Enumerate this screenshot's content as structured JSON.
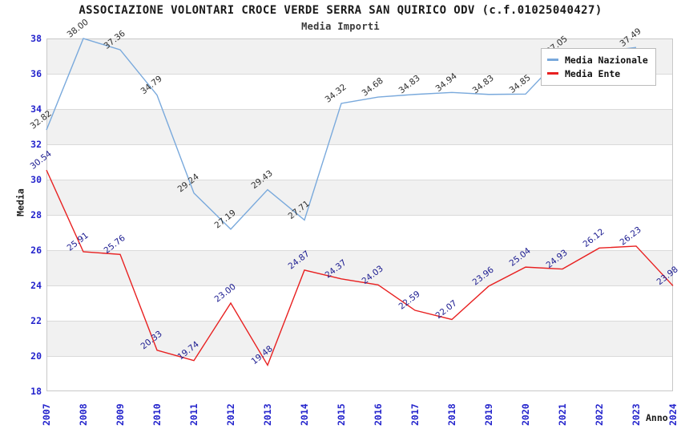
{
  "chart_data": {
    "type": "line",
    "title": "ASSOCIAZIONE VOLONTARI CROCE VERDE SERRA SAN QUIRICO ODV (c.f.01025040427)",
    "subtitle": "Media Importi",
    "xlabel": "Anno",
    "ylabel": "Media",
    "ylim": [
      18,
      38
    ],
    "y_ticks": [
      18,
      20,
      22,
      24,
      26,
      28,
      30,
      32,
      34,
      36,
      38
    ],
    "grid": "horizontal-bands",
    "legend_position": "top-right",
    "categories": [
      "2007",
      "2008",
      "2009",
      "2010",
      "2011",
      "2012",
      "2013",
      "2014",
      "2015",
      "2016",
      "2017",
      "2018",
      "2019",
      "2020",
      "2021",
      "2022",
      "2023",
      "2024"
    ],
    "series": [
      {
        "name": "Media Nazionale",
        "color": "#79a9dc",
        "label_color": "#2e2e2e",
        "values": [
          32.82,
          38.0,
          37.36,
          34.79,
          29.24,
          27.19,
          29.43,
          27.71,
          34.32,
          34.68,
          34.83,
          34.94,
          34.83,
          34.85,
          37.05,
          37.25,
          37.49,
          null
        ],
        "labels": [
          "32.82",
          "38.00",
          "37.36",
          "34.79",
          "29.24",
          "27.19",
          "29.43",
          "27.71",
          "34.32",
          "34.68",
          "34.83",
          "34.94",
          "34.83",
          "34.85",
          "37.05",
          null,
          "37.49",
          null
        ]
      },
      {
        "name": "Media Ente",
        "color": "#e82020",
        "label_color": "#19198f",
        "values": [
          30.54,
          25.91,
          25.76,
          20.33,
          19.74,
          23.0,
          19.48,
          24.87,
          24.37,
          24.03,
          22.59,
          22.07,
          23.96,
          25.04,
          24.93,
          26.12,
          26.23,
          23.98
        ],
        "labels": [
          "30.54",
          "25.91",
          "25.76",
          "20.33",
          "19.74",
          "23.00",
          "19.48",
          "24.87",
          "24.37",
          "24.03",
          "22.59",
          "22.07",
          "23.96",
          "25.04",
          "24.93",
          "26.12",
          "26.23",
          "23.98"
        ]
      }
    ],
    "style_colors": {
      "tick_label": "#2323cc",
      "band_fill": "#f1f1f1",
      "grid_line": "#dadada",
      "plot_border": "#c8c8c8"
    }
  }
}
